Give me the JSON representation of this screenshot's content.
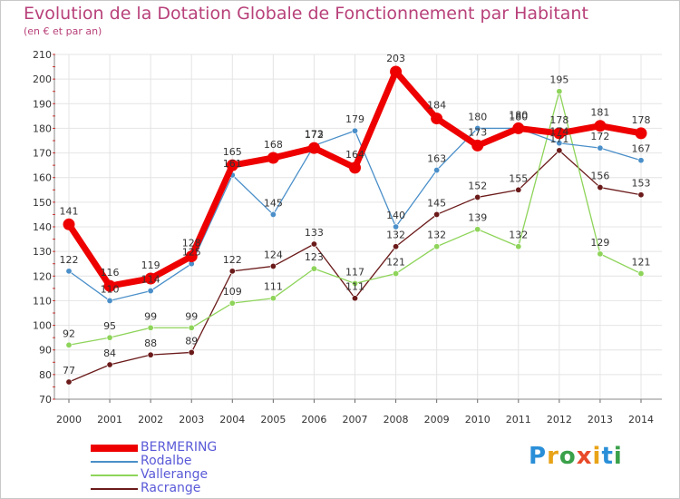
{
  "header": {
    "title": "Evolution de la Dotation Globale de Fonctionnement par Habitant",
    "subtitle": "(en € et par an)"
  },
  "brand": {
    "name": "Proxiti",
    "letters": [
      "P",
      "r",
      "o",
      "x",
      "i",
      "t",
      "i"
    ],
    "colors": [
      "#2a8fd8",
      "#e8a317",
      "#3aa14a",
      "#e84a2a",
      "#e8a317",
      "#2a8fd8",
      "#3aa14a"
    ]
  },
  "chart_data": {
    "type": "line",
    "title": "Evolution de la Dotation Globale de Fonctionnement par Habitant",
    "subtitle": "(en € et par an)",
    "xlabel": "",
    "ylabel": "",
    "x": [
      2000,
      2001,
      2002,
      2003,
      2004,
      2005,
      2006,
      2007,
      2008,
      2009,
      2010,
      2011,
      2012,
      2013,
      2014
    ],
    "ylim": [
      70,
      210
    ],
    "yticks": [
      70,
      80,
      90,
      100,
      110,
      120,
      130,
      140,
      150,
      160,
      170,
      180,
      190,
      200,
      210
    ],
    "grid": true,
    "legend": "bottom-left",
    "series": [
      {
        "name": "BERMERING",
        "color": "#ee0000",
        "values": [
          141,
          116,
          119,
          128,
          165,
          168,
          172,
          164,
          203,
          184,
          173,
          180,
          178,
          181,
          178
        ]
      },
      {
        "name": "Rodalbe",
        "color": "#4a8fc9",
        "values": [
          122,
          110,
          114,
          125,
          161,
          145,
          173,
          179,
          140,
          163,
          180,
          180,
          174,
          172,
          167
        ]
      },
      {
        "name": "Vallerange",
        "color": "#8ed45a",
        "values": [
          92,
          95,
          99,
          99,
          109,
          111,
          123,
          117,
          121,
          132,
          139,
          132,
          195,
          129,
          121
        ]
      },
      {
        "name": "Racrange",
        "color": "#6b1a1a",
        "values": [
          77,
          84,
          88,
          89,
          122,
          124,
          133,
          111,
          132,
          145,
          152,
          155,
          171,
          156,
          153
        ]
      }
    ]
  }
}
